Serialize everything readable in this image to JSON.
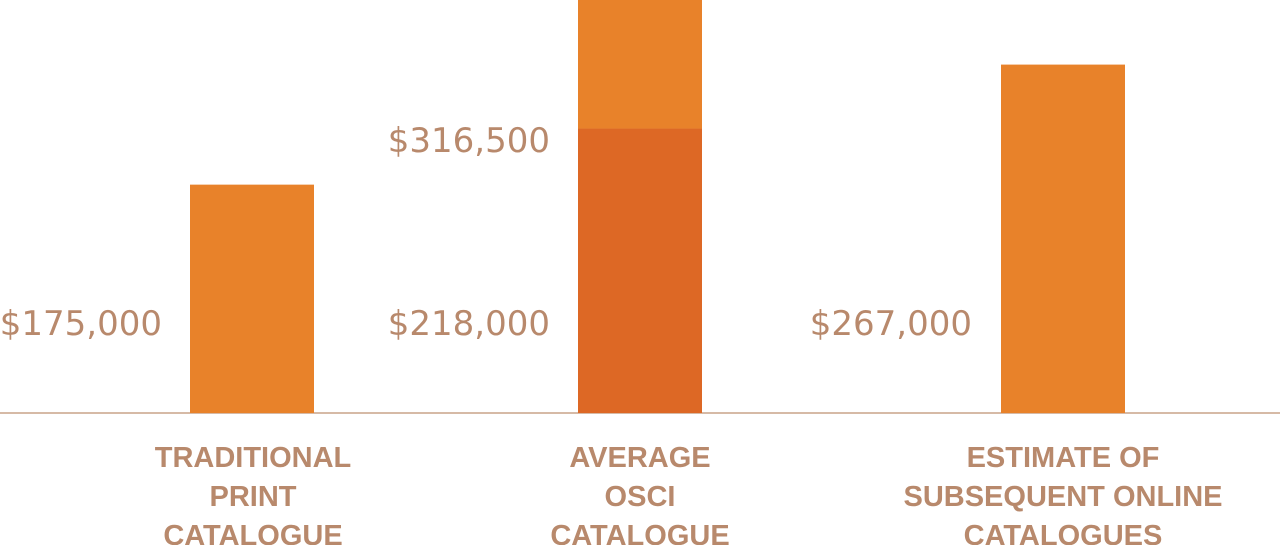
{
  "chart_data": {
    "type": "bar",
    "stacked": true,
    "grid": false,
    "legend": "none",
    "categories": [
      [
        "TRADITIONAL",
        "PRINT",
        "CATALOGUE"
      ],
      [
        "AVERAGE",
        "OSCI",
        "CATALOGUE"
      ],
      [
        "ESTIMATE OF",
        "SUBSEQUENT ONLINE",
        "CATALOGUES"
      ]
    ],
    "series": [
      {
        "values": [
          175000,
          218000,
          267000
        ],
        "color": "#e8822a",
        "base_color_variants": [
          "#e8822a",
          "#dd6825",
          "#e8822a"
        ]
      },
      {
        "values": [
          0,
          98500,
          0
        ],
        "color": "#e8822a"
      }
    ],
    "value_labels": [
      {
        "bar": 0,
        "text": "$175,000",
        "value": 175000
      },
      {
        "bar": 1,
        "text": "$218,000",
        "value": 218000
      },
      {
        "bar": 1,
        "text": "$316,500",
        "value": 316500
      },
      {
        "bar": 2,
        "text": "$267,000",
        "value": 267000
      }
    ],
    "ylim": [
      0,
      316500
    ],
    "title": "",
    "xlabel": "",
    "ylabel": "",
    "colors": {
      "bar": "#e8822a",
      "bar_dark": "#dd6825",
      "text": "#b8896c",
      "baseline": "#c9a488"
    }
  }
}
